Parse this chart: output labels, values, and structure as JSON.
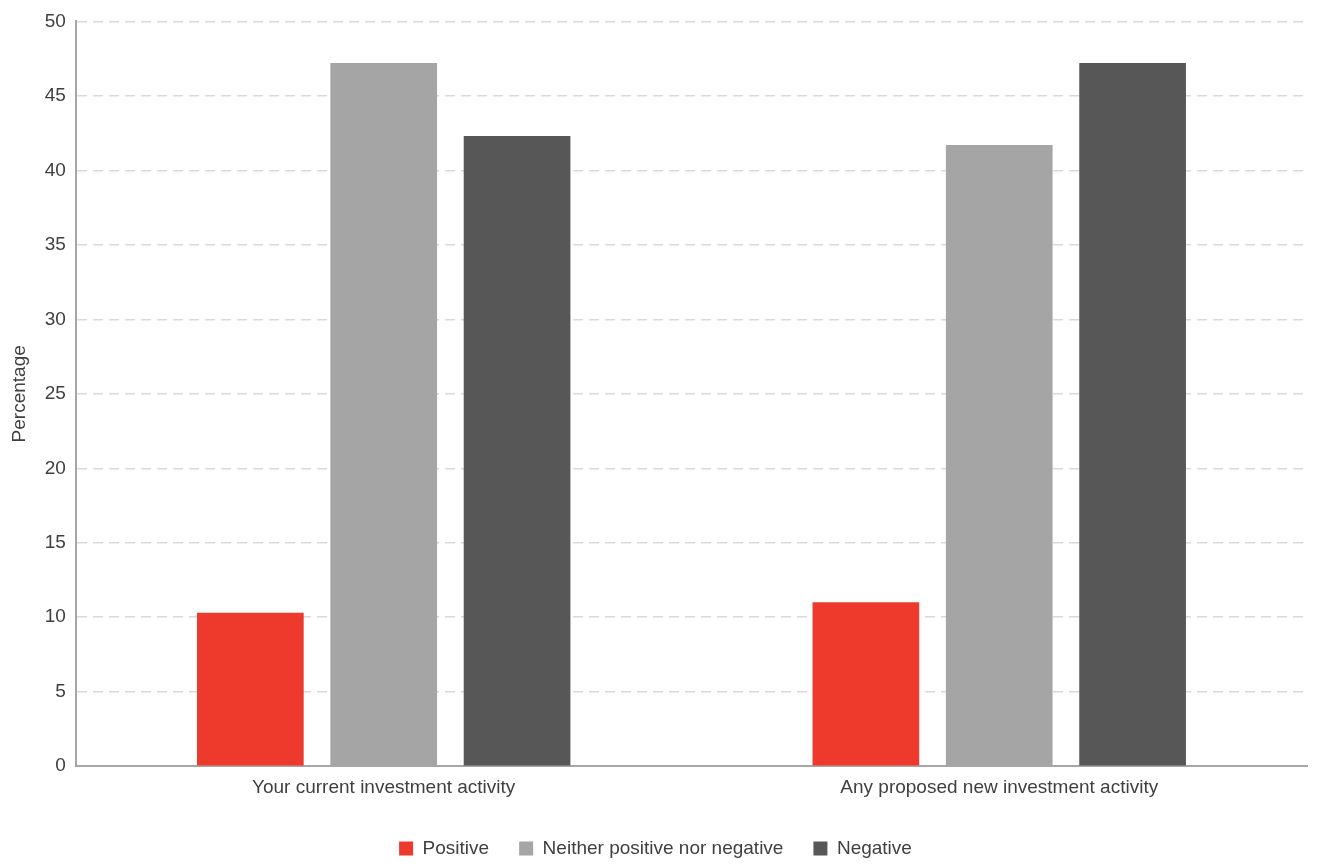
{
  "chart_data": {
    "type": "bar",
    "ylabel": "Percentage",
    "categories": [
      "Your current investment activity",
      "Any proposed new investment activity"
    ],
    "series": [
      {
        "name": "Positive",
        "color": "#ee3a2c",
        "values": [
          10.3,
          11.0
        ]
      },
      {
        "name": "Neither positive nor negative",
        "color": "#a5a5a5",
        "values": [
          47.2,
          41.7
        ]
      },
      {
        "name": "Negative",
        "color": "#575757",
        "values": [
          42.3,
          47.2
        ]
      }
    ],
    "ylim": [
      0,
      50
    ],
    "yticks": [
      0,
      5,
      10,
      15,
      20,
      25,
      30,
      35,
      40,
      45,
      50
    ],
    "grid": "y",
    "legend": "bottom"
  }
}
